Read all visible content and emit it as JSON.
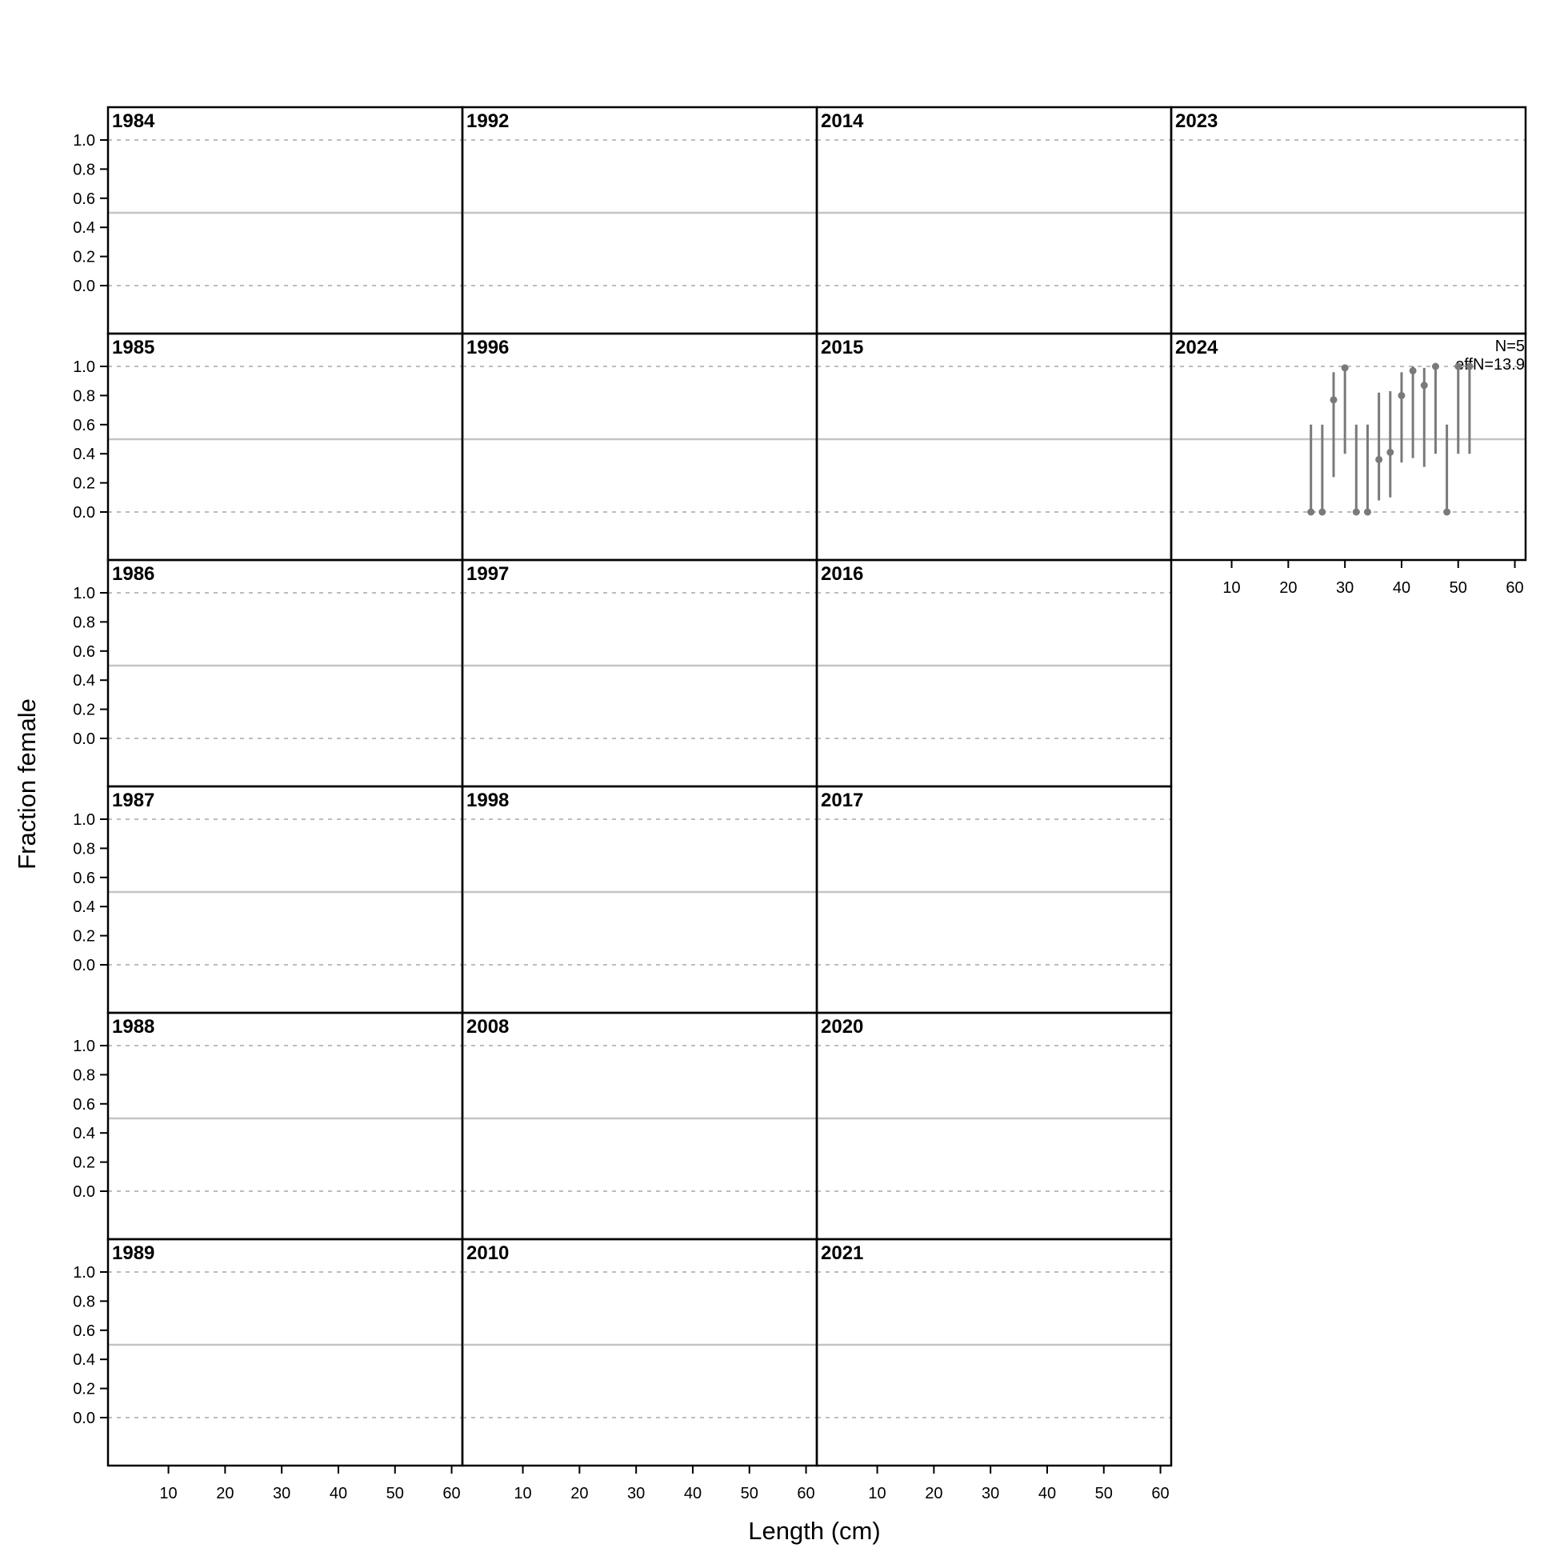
{
  "chart_data": {
    "type": "scatter",
    "xlabel": "Length (cm)",
    "ylabel": "Fraction female",
    "xlim": [
      3,
      66
    ],
    "ylim": [
      -0.15,
      1.4
    ],
    "x_ticks": [
      "10",
      "20",
      "30",
      "40",
      "50",
      "60"
    ],
    "y_ticks": [
      "0.0",
      "0.2",
      "0.4",
      "0.6",
      "0.8",
      "1.0"
    ],
    "grid": {
      "dashed_reference_lines": [
        0,
        1
      ],
      "solid_reference_line": 0.5
    },
    "layout": "panels filled column-wise, 6 rows by 4 columns",
    "colors": {
      "points": "#7a7a7a",
      "reference_lines": "#c4c4c4",
      "frame": "#000000"
    },
    "panels": [
      {
        "year": "1984",
        "points": []
      },
      {
        "year": "1985",
        "points": []
      },
      {
        "year": "1986",
        "points": []
      },
      {
        "year": "1987",
        "points": []
      },
      {
        "year": "1988",
        "points": []
      },
      {
        "year": "1989",
        "points": []
      },
      {
        "year": "1992",
        "points": []
      },
      {
        "year": "1996",
        "points": []
      },
      {
        "year": "1997",
        "points": []
      },
      {
        "year": "1998",
        "points": []
      },
      {
        "year": "2008",
        "points": []
      },
      {
        "year": "2010",
        "points": []
      },
      {
        "year": "2014",
        "points": []
      },
      {
        "year": "2015",
        "points": []
      },
      {
        "year": "2016",
        "points": []
      },
      {
        "year": "2017",
        "points": []
      },
      {
        "year": "2020",
        "points": []
      },
      {
        "year": "2021",
        "points": []
      },
      {
        "year": "2023",
        "points": []
      },
      {
        "year": "2024",
        "annotation": [
          "N=5",
          "effN=13.9"
        ],
        "points": [
          {
            "x": 24,
            "y": 0.0,
            "lo": 0.0,
            "hi": 0.6
          },
          {
            "x": 26,
            "y": 0.0,
            "lo": 0.0,
            "hi": 0.6
          },
          {
            "x": 28,
            "y": 0.77,
            "lo": 0.24,
            "hi": 0.96
          },
          {
            "x": 30,
            "y": 0.99,
            "lo": 0.4,
            "hi": 1.0
          },
          {
            "x": 32,
            "y": 0.0,
            "lo": 0.0,
            "hi": 0.6
          },
          {
            "x": 34,
            "y": 0.0,
            "lo": 0.0,
            "hi": 0.6
          },
          {
            "x": 36,
            "y": 0.36,
            "lo": 0.08,
            "hi": 0.82
          },
          {
            "x": 38,
            "y": 0.41,
            "lo": 0.1,
            "hi": 0.83
          },
          {
            "x": 40,
            "y": 0.8,
            "lo": 0.34,
            "hi": 0.96
          },
          {
            "x": 42,
            "y": 0.97,
            "lo": 0.37,
            "hi": 1.0
          },
          {
            "x": 44,
            "y": 0.87,
            "lo": 0.31,
            "hi": 0.99
          },
          {
            "x": 46,
            "y": 1.0,
            "lo": 0.4,
            "hi": 1.0
          },
          {
            "x": 48,
            "y": 0.0,
            "lo": 0.0,
            "hi": 0.6
          },
          {
            "x": 50,
            "y": 1.0,
            "lo": 0.4,
            "hi": 1.0
          },
          {
            "x": 52,
            "y": 1.0,
            "lo": 0.4,
            "hi": 1.0
          }
        ]
      }
    ]
  }
}
